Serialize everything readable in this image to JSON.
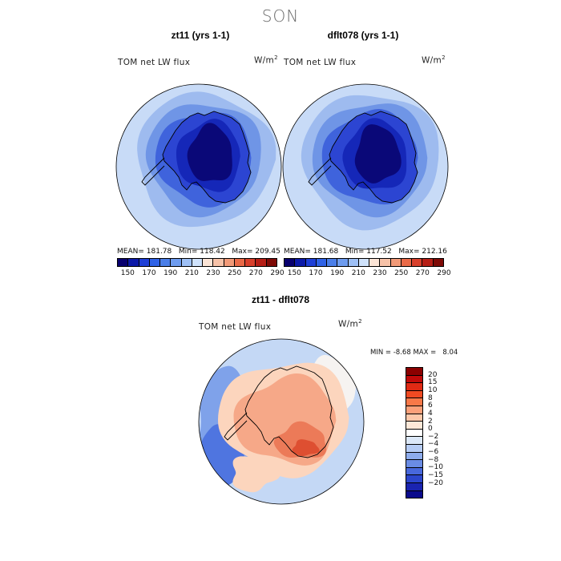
{
  "season": "SON",
  "panels": [
    {
      "title": "zt11 (yrs 1-1)",
      "variable": "TOM net LW flux",
      "units": "W/m",
      "stats": {
        "mean": "181.78",
        "min": "118.42",
        "max": "209.45"
      }
    },
    {
      "title": "dflt078 (yrs 1-1)",
      "variable": "TOM net LW flux",
      "units": "W/m",
      "stats": {
        "mean": "181.68",
        "min": "117.52",
        "max": "212.16"
      }
    }
  ],
  "stats_labels": {
    "mean": "MEAN=",
    "min": "Min=",
    "max": "Max="
  },
  "abs_colorbar": {
    "colors": [
      "#08006e",
      "#0c1aa8",
      "#1e3fd6",
      "#2f62e6",
      "#4a7ee8",
      "#6e9cef",
      "#9ec0f6",
      "#cfe2fb",
      "#fbe4d6",
      "#f7c2a8",
      "#f29a78",
      "#ea6a48",
      "#d8402c",
      "#b61e16",
      "#7e0a06"
    ],
    "labels": [
      "150",
      "170",
      "190",
      "210",
      "230",
      "250",
      "270",
      "290"
    ]
  },
  "diff_panel": {
    "title": "zt11 - dflt078",
    "variable": "TOM net LW flux",
    "units": "W/m",
    "min_label": "MIN =",
    "min": "-8.68",
    "max_label": "MAX =",
    "max": "8.04"
  },
  "diff_colorbar": {
    "colors_top_to_bottom": [
      "#8b0000",
      "#c00a0a",
      "#e02a14",
      "#f04a22",
      "#f87848",
      "#fba07a",
      "#fdc8aa",
      "#fde8d8",
      "#ffffff",
      "#dce8f8",
      "#b6ccf4",
      "#8eacec",
      "#6a8ce4",
      "#4868dc",
      "#2c46cc",
      "#1a24b0",
      "#0a0a8c"
    ],
    "labels_top_to_bottom": [
      "20",
      "15",
      "10",
      "8",
      "6",
      "4",
      "2",
      "0",
      "−2",
      "−4",
      "−6",
      "−8",
      "−10",
      "−15",
      "−20"
    ]
  },
  "map_colors": {
    "ocean_light": "#c8dbf7",
    "ocean_mid": "#9ebbef",
    "ocean_blue": "#6f95e6",
    "shelf": "#3f63dc",
    "coast": "#2c45d2",
    "ice": "#1527b8",
    "plateau": "#0a0878",
    "diff_white": "#f6f3f1",
    "diff_blue_light": "#c4d8f5",
    "diff_blue": "#7fa2ea",
    "diff_blue_dark": "#4f75e0",
    "diff_peach": "#fcd5bd",
    "diff_orange": "#f6a888",
    "diff_red": "#ec7a58",
    "diff_dark_red": "#de4f31"
  }
}
